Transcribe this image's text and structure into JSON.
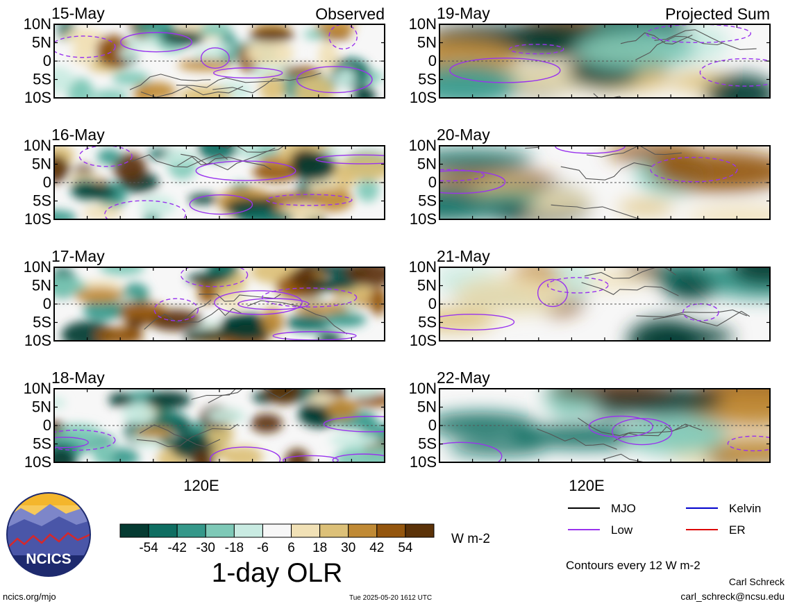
{
  "chart_data": {
    "type": "heatmap",
    "title": "1-day OLR",
    "units": "W m-2",
    "colorbar_labels": [
      "-54",
      "-42",
      "-30",
      "-18",
      "-6",
      "6",
      "18",
      "30",
      "42",
      "54"
    ],
    "colorbar_colors": [
      "#053b32",
      "#0f6e62",
      "#35988a",
      "#7ec9b7",
      "#c9ebe2",
      "#f7f7f7",
      "#f1e1b6",
      "#dcc078",
      "#c08a35",
      "#94560e",
      "#5b3208"
    ],
    "ylabels": [
      "10N",
      "5N",
      "0",
      "5S",
      "10S"
    ],
    "xlabel_left": "120E",
    "xlabel_right": "120E",
    "columns": [
      {
        "heading": "Observed",
        "panels": [
          "15-May",
          "16-May",
          "17-May",
          "18-May"
        ]
      },
      {
        "heading": "Projected Sum",
        "panels": [
          "19-May",
          "20-May",
          "21-May",
          "22-May"
        ]
      }
    ],
    "legend": [
      {
        "label": "MJO",
        "color": "#000000"
      },
      {
        "label": "Kelvin",
        "color": "#0000cc"
      },
      {
        "label": "Low",
        "color": "#9933ee"
      },
      {
        "label": "ER",
        "color": "#dd0000"
      }
    ]
  },
  "contours_note": "Contours every 12 W m-2",
  "logo_text": "NCICS",
  "footer": {
    "site": "ncics.org/mjo",
    "timestamp": "Tue 2025-05-20 1612 UTC",
    "author": "Carl Schreck",
    "email": "carl_schreck@ncsu.edu"
  }
}
